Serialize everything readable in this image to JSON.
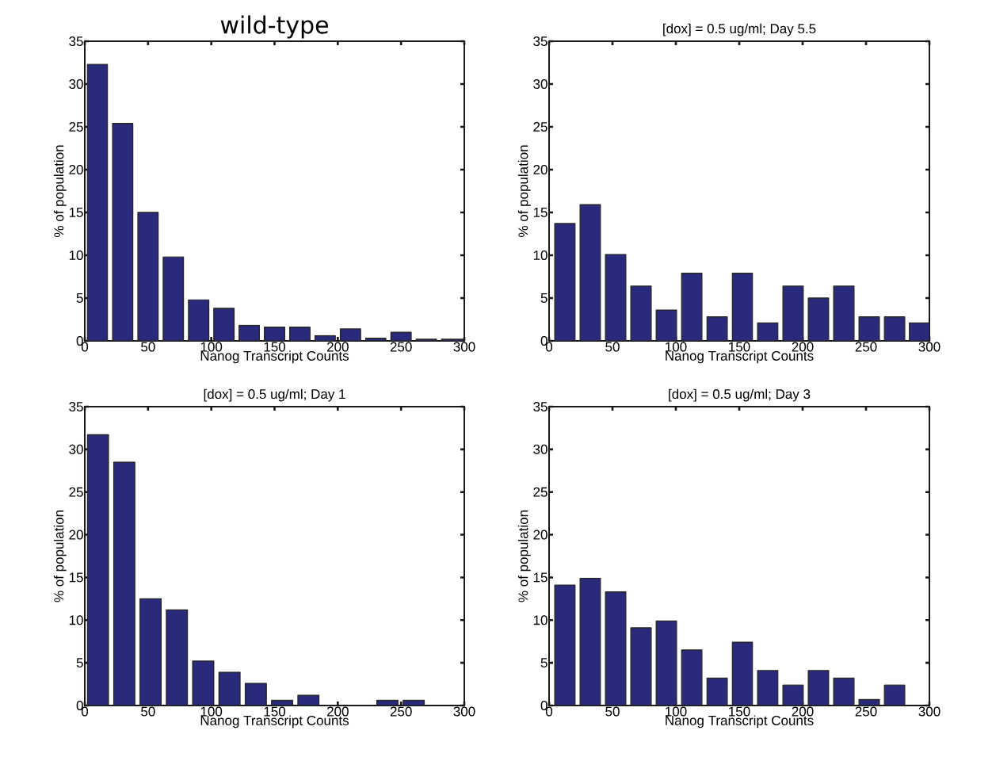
{
  "chart_data": [
    {
      "type": "histogram",
      "title": "wild-type",
      "xlabel": "Nanog Transcript Counts",
      "ylabel": "% of population",
      "color": "#2a2a7c",
      "bins": [
        0,
        20,
        40,
        60,
        80,
        100,
        120,
        140,
        160,
        180,
        200,
        220,
        240,
        260,
        280,
        300
      ],
      "values": [
        32.3,
        25.4,
        15.0,
        9.8,
        4.8,
        3.8,
        1.8,
        1.6,
        1.6,
        0.6,
        1.4,
        0.3,
        1.0,
        0.2,
        0.2
      ],
      "xlim": [
        0,
        300
      ],
      "ylim": [
        0,
        35
      ],
      "xticks": [
        0,
        50,
        100,
        150,
        200,
        250,
        300
      ],
      "yticks": [
        0,
        5,
        10,
        15,
        20,
        25,
        30,
        35
      ]
    },
    {
      "type": "histogram",
      "title": "[dox] = 0.5 ug/ml; Day 5.5",
      "xlabel": "Nanog Transcript Counts",
      "ylabel": "% of population",
      "color": "#2a2a7c",
      "bins": [
        2.5,
        22.5,
        42.5,
        62.5,
        82.5,
        102.5,
        122.5,
        142.5,
        162.5,
        182.5,
        202.5,
        222.5,
        242.5,
        262.5,
        282.5,
        300
      ],
      "values": [
        13.7,
        15.9,
        10.1,
        6.4,
        3.6,
        7.9,
        2.8,
        7.9,
        2.1,
        6.4,
        5.0,
        6.4,
        2.8,
        2.8,
        2.1
      ],
      "xlim": [
        0,
        300
      ],
      "ylim": [
        0,
        35
      ],
      "xticks": [
        0,
        50,
        100,
        150,
        200,
        250,
        300
      ],
      "yticks": [
        0,
        5,
        10,
        15,
        20,
        25,
        30,
        35
      ]
    },
    {
      "type": "histogram",
      "title": "[dox] = 0.5 ug/ml; Day 1",
      "xlabel": "Nanog Transcript Counts",
      "ylabel": "% of population",
      "color": "#2a2a7c",
      "bins": [
        0,
        20.8,
        41.6,
        62.4,
        83.2,
        104,
        124.8,
        145.6,
        166.4,
        187.2,
        208,
        228.8,
        249.6,
        270.4
      ],
      "values": [
        31.7,
        28.5,
        12.5,
        11.2,
        5.2,
        3.9,
        2.6,
        0.6,
        1.2,
        0,
        0,
        0.6,
        0.6
      ],
      "xlim": [
        0,
        300
      ],
      "ylim": [
        0,
        35
      ],
      "xticks": [
        0,
        50,
        100,
        150,
        200,
        250,
        300
      ],
      "yticks": [
        0,
        5,
        10,
        15,
        20,
        25,
        30,
        35
      ]
    },
    {
      "type": "histogram",
      "title": "[dox] = 0.5 ug/ml; Day 3",
      "xlabel": "Nanog Transcript Counts",
      "ylabel": "% of population",
      "color": "#2a2a7c",
      "bins": [
        2.5,
        22.5,
        42.5,
        62.5,
        82.5,
        102.5,
        122.5,
        142.5,
        162.5,
        182.5,
        202.5,
        222.5,
        242.5,
        262.5,
        282.5
      ],
      "values": [
        14.1,
        14.9,
        13.3,
        9.1,
        9.9,
        6.5,
        3.2,
        7.4,
        4.1,
        2.4,
        4.1,
        3.2,
        0.7,
        2.4
      ],
      "xlim": [
        0,
        300
      ],
      "ylim": [
        0,
        35
      ],
      "xticks": [
        0,
        50,
        100,
        150,
        200,
        250,
        300
      ],
      "yticks": [
        0,
        5,
        10,
        15,
        20,
        25,
        30,
        35
      ]
    }
  ]
}
